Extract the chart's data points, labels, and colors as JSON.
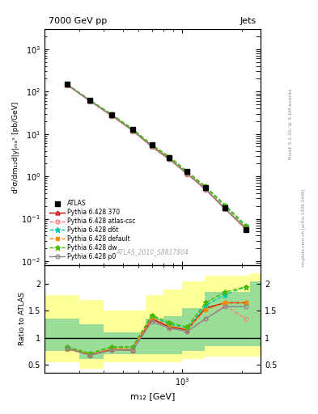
{
  "title_left": "7000 GeV pp",
  "title_right": "Jets",
  "ylabel_main": "d²σ/dm₁₂d|y|ₘₐˣ [pb/GeV]",
  "ylabel_ratio": "Ratio to ATLAS",
  "xlabel": "m₁₂ [GeV]",
  "right_label_top": "Rivet 3.1.10, ≥ 3.1M events",
  "right_label_bot": "mcplots.cern.ch [arXiv:1306.3436]",
  "watermark": "ATLAS_2010_S8817804",
  "x_data": [
    260,
    340,
    440,
    560,
    700,
    860,
    1060,
    1310,
    1650,
    2100
  ],
  "atlas_y": [
    150,
    62,
    28,
    13,
    5.5,
    2.8,
    1.3,
    0.55,
    0.18,
    0.055
  ],
  "pythia_370_y": [
    145,
    60,
    27,
    12,
    5.2,
    2.6,
    1.15,
    0.5,
    0.17,
    0.06
  ],
  "pythia_atlas_csc_y": [
    145,
    60,
    26,
    12,
    5.0,
    2.5,
    1.12,
    0.48,
    0.17,
    0.055
  ],
  "pythia_d6t_y": [
    148,
    62,
    28,
    13,
    5.5,
    2.8,
    1.25,
    0.55,
    0.2,
    0.065
  ],
  "pythia_default_y": [
    148,
    62,
    27,
    12,
    5.2,
    2.6,
    1.18,
    0.52,
    0.18,
    0.06
  ],
  "pythia_dw_y": [
    150,
    63,
    29,
    13,
    5.6,
    2.9,
    1.3,
    0.58,
    0.21,
    0.07
  ],
  "pythia_p0_y": [
    148,
    60,
    27,
    12,
    5.0,
    2.5,
    1.15,
    0.5,
    0.17,
    0.058
  ],
  "ratio_370": [
    0.8,
    0.68,
    0.78,
    0.77,
    1.35,
    1.2,
    1.15,
    1.55,
    1.65,
    1.65
  ],
  "ratio_atlas_csc": [
    0.8,
    0.68,
    0.77,
    0.78,
    1.32,
    1.18,
    1.12,
    1.35,
    1.6,
    1.35
  ],
  "ratio_d6t": [
    0.82,
    0.7,
    0.82,
    0.82,
    1.4,
    1.25,
    1.18,
    1.6,
    1.8,
    1.95
  ],
  "ratio_default": [
    0.81,
    0.69,
    0.8,
    0.8,
    1.38,
    1.22,
    1.16,
    1.52,
    1.65,
    1.65
  ],
  "ratio_dw": [
    0.83,
    0.71,
    0.83,
    0.83,
    1.42,
    1.28,
    1.2,
    1.65,
    1.85,
    1.95
  ],
  "ratio_p0": [
    0.8,
    0.67,
    0.77,
    0.77,
    1.3,
    1.18,
    1.12,
    1.35,
    1.58,
    1.58
  ],
  "band_x_edges": [
    200,
    300,
    400,
    500,
    650,
    800,
    1000,
    1300,
    2200,
    2500
  ],
  "green_lo": [
    0.75,
    0.6,
    0.7,
    0.7,
    0.7,
    0.7,
    0.75,
    0.85,
    0.85
  ],
  "green_hi": [
    1.35,
    1.25,
    1.1,
    1.1,
    1.35,
    1.4,
    1.55,
    1.85,
    2.05
  ],
  "yellow_lo": [
    0.55,
    0.42,
    0.55,
    0.55,
    0.55,
    0.55,
    0.6,
    0.65,
    0.65
  ],
  "yellow_hi": [
    1.8,
    1.7,
    1.5,
    1.5,
    1.8,
    1.9,
    2.05,
    2.15,
    2.2
  ],
  "color_370": "#cc0000",
  "color_atlas_csc": "#ff8080",
  "color_d6t": "#00ccaa",
  "color_default": "#ff8800",
  "color_dw": "#44bb00",
  "color_p0": "#888888",
  "color_atlas": "#000000",
  "ylim_main": [
    0.008,
    3000
  ],
  "ylim_ratio": [
    0.35,
    2.35
  ],
  "xlim": [
    200,
    2500
  ]
}
